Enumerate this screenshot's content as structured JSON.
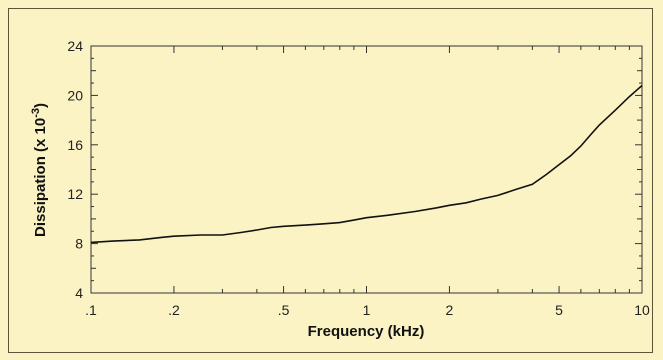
{
  "chart_data": {
    "type": "line",
    "xlabel": "Frequency (kHz)",
    "ylabel_main": "Dissipation (x 10",
    "ylabel_exp": "-3",
    "ylabel_close": ")",
    "x_scale": "log",
    "xlim": [
      0.1,
      10
    ],
    "ylim": [
      4,
      24
    ],
    "x_ticks": [
      0.1,
      0.2,
      0.5,
      1,
      2,
      5,
      10
    ],
    "x_tick_labels": [
      ".1",
      ".2",
      ".5",
      "1",
      "2",
      "5",
      "10"
    ],
    "y_ticks": [
      4,
      8,
      12,
      16,
      20,
      24
    ],
    "y_tick_labels": [
      "4",
      "8",
      "12",
      "16",
      "20",
      "24"
    ],
    "grid": false,
    "series": [
      {
        "x": [
          0.1,
          0.12,
          0.15,
          0.18,
          0.2,
          0.25,
          0.3,
          0.35,
          0.4,
          0.45,
          0.5,
          0.6,
          0.7,
          0.8,
          0.9,
          1.0,
          1.2,
          1.5,
          1.8,
          2.0,
          2.3,
          2.6,
          3.0,
          3.5,
          4.0,
          4.5,
          5.0,
          5.5,
          6.0,
          6.5,
          7.0,
          8.0,
          9.0,
          10.0
        ],
        "y": [
          8.1,
          8.2,
          8.3,
          8.5,
          8.6,
          8.7,
          8.7,
          8.9,
          9.1,
          9.3,
          9.4,
          9.5,
          9.6,
          9.7,
          9.9,
          10.1,
          10.3,
          10.6,
          10.9,
          11.1,
          11.3,
          11.6,
          11.9,
          12.4,
          12.8,
          13.6,
          14.4,
          15.1,
          15.9,
          16.8,
          17.6,
          18.8,
          19.9,
          20.8
        ]
      }
    ]
  }
}
